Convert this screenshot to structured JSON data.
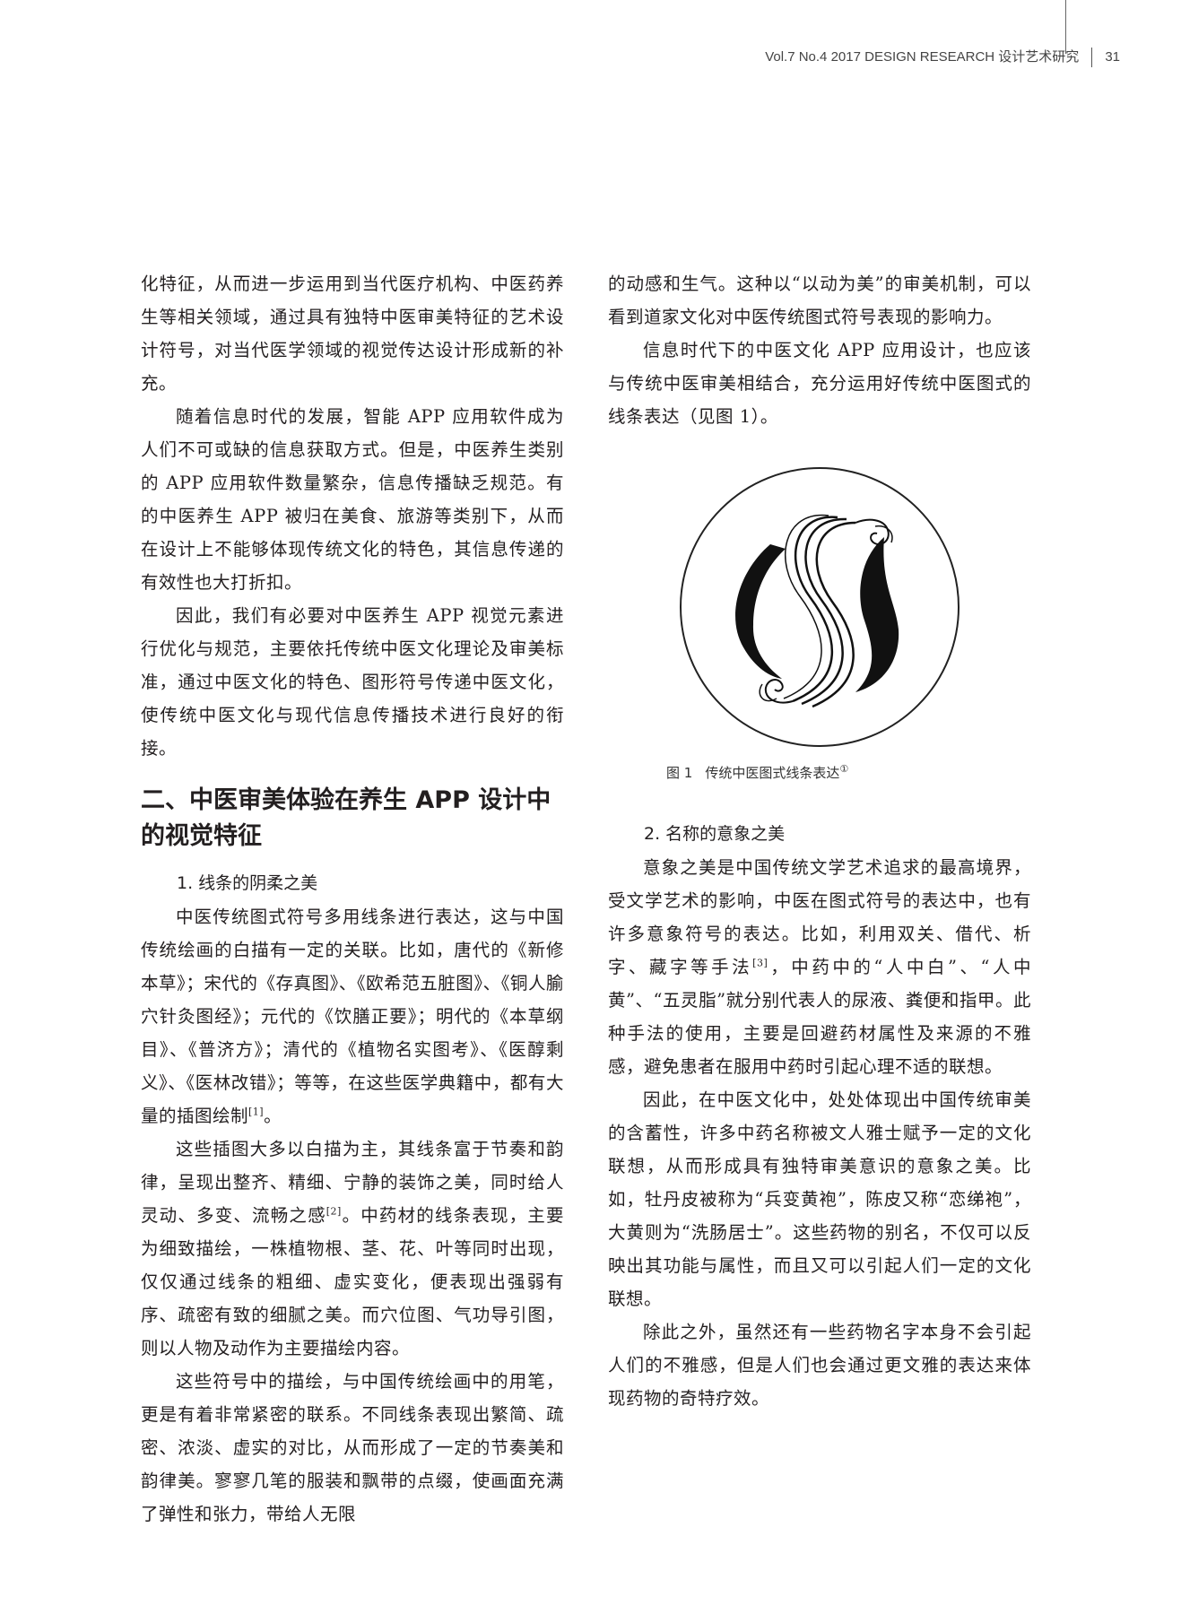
{
  "header": {
    "journal": "Vol.7 No.4 2017  DESIGN RESEARCH 设计艺术研究",
    "page_number": "31"
  },
  "left": {
    "p1": "化特征，从而进一步运用到当代医疗机构、中医药养生等相关领域，通过具有独特中医审美特征的艺术设计符号，对当代医学领域的视觉传达设计形成新的补充。",
    "p2": "随着信息时代的发展，智能 APP 应用软件成为人们不可或缺的信息获取方式。但是，中医养生类别的 APP 应用软件数量繁杂，信息传播缺乏规范。有的中医养生 APP 被归在美食、旅游等类别下，从而在设计上不能够体现传统文化的特色，其信息传递的有效性也大打折扣。",
    "p3": "因此，我们有必要对中医养生 APP 视觉元素进行优化与规范，主要依托传统中医文化理论及审美标准，通过中医文化的特色、图形符号传递中医文化，使传统中医文化与现代信息传播技术进行良好的衔接。",
    "section_title": "二、中医审美体验在养生 APP 设计中的视觉特征",
    "sub1": "1. 线条的阴柔之美",
    "p4": "中医传统图式符号多用线条进行表达，这与中国传统绘画的白描有一定的关联。比如，唐代的《新修本草》；宋代的《存真图》、《欧希范五脏图》、《铜人腧穴针灸图经》；元代的《饮膳正要》；明代的《本草纲目》、《普济方》；清代的《植物名实图考》、《医醇剩义》、《医林改错》；等等，在这些医学典籍中，都有大量的插图绘制",
    "p4_ref": "[1]",
    "p4_end": "。",
    "p5a": "这些插图大多以白描为主，其线条富于节奏和韵律，呈现出整齐、精细、宁静的装饰之美，同时给人灵动、多变、流畅之感",
    "p5_ref": "[2]",
    "p5b": "。中药材的线条表现，主要为细致描绘，一株植物根、茎、花、叶等同时出现，仅仅通过线条的粗细、虚实变化，便表现出强弱有序、疏密有致的细腻之美。而穴位图、气功导引图，则以人物及动作为主要描绘内容。",
    "p6": "这些符号中的描绘，与中国传统绘画中的用笔，更是有着非常紧密的联系。不同线条表现出繁简、疏密、浓淡、虚实的对比，从而形成了一定的节奏美和韵律美。寥寥几笔的服装和飘带的点缀，使画面充满了弹性和张力，带给人无限"
  },
  "right": {
    "p1": "的动感和生气。这种以“以动为美”的审美机制，可以看到道家文化对中医传统图式符号表现的影响力。",
    "p2": "信息时代下的中医文化 APP 应用设计，也应该与传统中医审美相结合，充分运用好传统中医图式的线条表达（见图 1）。",
    "figure": {
      "label": "图 1",
      "caption": "传统中医图式线条表达",
      "note": "①"
    },
    "sub2": "2. 名称的意象之美",
    "p3a": "意象之美是中国传统文学艺术追求的最高境界，受文学艺术的影响，中医在图式符号的表达中，也有许多意象符号的表达。比如，利用双关、借代、析字、藏字等手法",
    "p3_ref": "[3]",
    "p3b": "，中药中的“人中白”、“人中黄”、“五灵脂”就分别代表人的尿液、粪便和指甲。此种手法的使用，主要是回避药材属性及来源的不雅感，避免患者在服用中药时引起心理不适的联想。",
    "p4": "因此，在中医文化中，处处体现出中国传统审美的含蓄性，许多中药名称被文人雅士赋予一定的文化联想，从而形成具有独特审美意识的意象之美。比如，牡丹皮被称为“兵变黄袍”，陈皮又称“恋绨袍”，大黄则为“洗肠居士”。这些药物的别名，不仅可以反映出其功能与属性，而且又可以引起人们一定的文化联想。",
    "p5": "除此之外，虽然还有一些药物名字本身不会引起人们的不雅感，但是人们也会通过更文雅的表达来体现药物的奇特疗效。"
  }
}
